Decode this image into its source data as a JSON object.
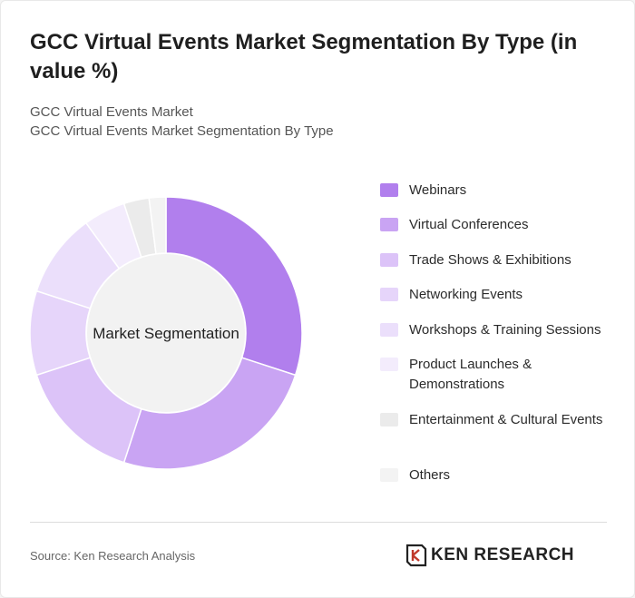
{
  "header": {
    "title": "GCC Virtual Events Market Segmentation By Type (in value %)",
    "subtitle_1": "GCC Virtual Events Market",
    "subtitle_2": "GCC Virtual Events Market Segmentation By Type"
  },
  "chart_data": {
    "type": "pie",
    "variant": "donut",
    "center_label": "Market Segmentation",
    "categories": [
      "Webinars",
      "Virtual Conferences",
      "Trade Shows & Exhibitions",
      "Networking Events",
      "Workshops & Training Sessions",
      "Product Launches & Demonstrations",
      "Entertainment & Cultural Events",
      "Others"
    ],
    "values": [
      30,
      25,
      15,
      10,
      10,
      5,
      3,
      2
    ],
    "colors": [
      "#b17fed",
      "#c9a4f3",
      "#dcc3f8",
      "#e6d5fa",
      "#ebdffb",
      "#f3ecfc",
      "#ebebeb",
      "#f3f3f3"
    ],
    "legend_position": "right"
  },
  "footer": {
    "source": "Source: Ken Research Analysis",
    "logo_text": "KEN RESEARCH"
  }
}
